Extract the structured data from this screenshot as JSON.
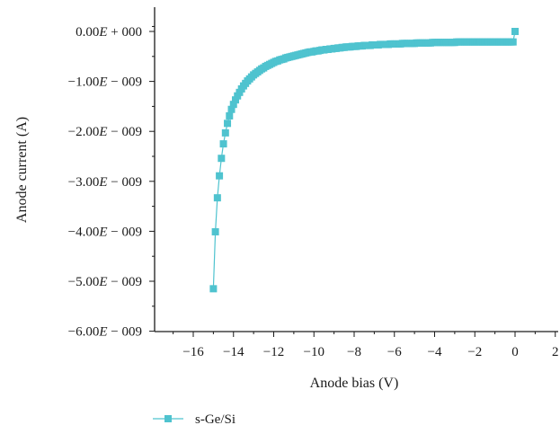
{
  "chart_data": {
    "type": "scatter",
    "title": "",
    "xlabel": "Anode bias (V)",
    "ylabel": "Anode current (A)",
    "xlim": [
      -17,
      2
    ],
    "ylim": [
      -6e-09,
      2e-10
    ],
    "x_ticks": [
      -16,
      -14,
      -12,
      -10,
      -8,
      -6,
      -4,
      -2,
      0,
      2
    ],
    "x_tick_labels": [
      "−16",
      "−14",
      "−12",
      "−10",
      "−8",
      "−6",
      "−4",
      "−2",
      "0",
      "2"
    ],
    "y_ticks": [
      0,
      -1e-09,
      -2e-09,
      -3e-09,
      -4e-09,
      -5e-09,
      -6e-09
    ],
    "y_tick_labels": [
      {
        "mant": "0.00",
        "sep": " + ",
        "exp": "000"
      },
      {
        "mant": "−1.00",
        "sep": " − ",
        "exp": "009"
      },
      {
        "mant": "−2.00",
        "sep": " − ",
        "exp": "009"
      },
      {
        "mant": "−3.00",
        "sep": " − ",
        "exp": "009"
      },
      {
        "mant": "−4.00",
        "sep": " − ",
        "exp": "009"
      },
      {
        "mant": "−5.00",
        "sep": " − ",
        "exp": "009"
      },
      {
        "mant": "−6.00",
        "sep": " − ",
        "exp": "009"
      }
    ],
    "y_exp_symbol": "E",
    "grid": false,
    "legend_position": "bottom-left",
    "series": [
      {
        "name": "s-Ge/Si",
        "color": "#4fc3cf",
        "marker": "square",
        "x": [
          -15.0,
          -14.9,
          -14.8,
          -14.7,
          -14.6,
          -14.5,
          -14.4,
          -14.3,
          -14.2,
          -14.1,
          -14.0,
          -13.9,
          -13.8,
          -13.7,
          -13.6,
          -13.5,
          -13.4,
          -13.3,
          -13.2,
          -13.1,
          -13.0,
          -12.9,
          -12.8,
          -12.7,
          -12.6,
          -12.5,
          -12.4,
          -12.3,
          -12.2,
          -12.1,
          -12.0,
          -11.9,
          -11.8,
          -11.7,
          -11.6,
          -11.5,
          -11.4,
          -11.3,
          -11.2,
          -11.1,
          -11.0,
          -10.9,
          -10.8,
          -10.7,
          -10.6,
          -10.5,
          -10.4,
          -10.3,
          -10.2,
          -10.1,
          -10.0,
          -9.9,
          -9.8,
          -9.7,
          -9.6,
          -9.5,
          -9.4,
          -9.3,
          -9.2,
          -9.1,
          -9.0,
          -8.9,
          -8.8,
          -8.7,
          -8.6,
          -8.5,
          -8.4,
          -8.3,
          -8.2,
          -8.1,
          -8.0,
          -7.9,
          -7.8,
          -7.7,
          -7.6,
          -7.5,
          -7.4,
          -7.3,
          -7.2,
          -7.1,
          -7.0,
          -6.9,
          -6.8,
          -6.7,
          -6.6,
          -6.5,
          -6.4,
          -6.3,
          -6.2,
          -6.1,
          -6.0,
          -5.9,
          -5.8,
          -5.7,
          -5.6,
          -5.5,
          -5.4,
          -5.3,
          -5.2,
          -5.1,
          -5.0,
          -4.9,
          -4.8,
          -4.7,
          -4.6,
          -4.5,
          -4.4,
          -4.3,
          -4.2,
          -4.1,
          -4.0,
          -3.9,
          -3.8,
          -3.7,
          -3.6,
          -3.5,
          -3.4,
          -3.3,
          -3.2,
          -3.1,
          -3.0,
          -2.9,
          -2.8,
          -2.7,
          -2.6,
          -2.5,
          -2.4,
          -2.3,
          -2.2,
          -2.1,
          -2.0,
          -1.9,
          -1.8,
          -1.7,
          -1.6,
          -1.5,
          -1.4,
          -1.3,
          -1.2,
          -1.1,
          -1.0,
          -0.9,
          -0.8,
          -0.7,
          -0.6,
          -0.5,
          -0.4,
          -0.3,
          -0.2,
          -0.1,
          0.0
        ],
        "y": [
          -5.15e-09,
          -4.01e-09,
          -3.33e-09,
          -2.89e-09,
          -2.54e-09,
          -2.25e-09,
          -2.03e-09,
          -1.84e-09,
          -1.69e-09,
          -1.56e-09,
          -1.46e-09,
          -1.37e-09,
          -1.29e-09,
          -1.22e-09,
          -1.15e-09,
          -1.09e-09,
          -1.04e-09,
          -9.9e-10,
          -9.5e-10,
          -9.1e-10,
          -8.7e-10,
          -8.4e-10,
          -8.1e-10,
          -7.8e-10,
          -7.5e-10,
          -7.3e-10,
          -7e-10,
          -6.8e-10,
          -6.6e-10,
          -6.4e-10,
          -6.2e-10,
          -6e-10,
          -5.9e-10,
          -5.7e-10,
          -5.6e-10,
          -5.5e-10,
          -5.3e-10,
          -5.2e-10,
          -5.1e-10,
          -5e-10,
          -4.9e-10,
          -4.8e-10,
          -4.7e-10,
          -4.6e-10,
          -4.5e-10,
          -4.4e-10,
          -4.3e-10,
          -4.2e-10,
          -4.1e-10,
          -4.1e-10,
          -4e-10,
          -3.9e-10,
          -3.9e-10,
          -3.8e-10,
          -3.7e-10,
          -3.7e-10,
          -3.6e-10,
          -3.6e-10,
          -3.5e-10,
          -3.5e-10,
          -3.4e-10,
          -3.4e-10,
          -3.3e-10,
          -3.3e-10,
          -3.2e-10,
          -3.2e-10,
          -3.1e-10,
          -3.1e-10,
          -3.1e-10,
          -3e-10,
          -3e-10,
          -3e-10,
          -2.9e-10,
          -2.9e-10,
          -2.9e-10,
          -2.8e-10,
          -2.8e-10,
          -2.8e-10,
          -2.8e-10,
          -2.7e-10,
          -2.7e-10,
          -2.7e-10,
          -2.7e-10,
          -2.6e-10,
          -2.6e-10,
          -2.6e-10,
          -2.6e-10,
          -2.6e-10,
          -2.5e-10,
          -2.5e-10,
          -2.5e-10,
          -2.5e-10,
          -2.5e-10,
          -2.5e-10,
          -2.4e-10,
          -2.4e-10,
          -2.4e-10,
          -2.4e-10,
          -2.4e-10,
          -2.4e-10,
          -2.4e-10,
          -2.3e-10,
          -2.3e-10,
          -2.3e-10,
          -2.3e-10,
          -2.3e-10,
          -2.3e-10,
          -2.3e-10,
          -2.3e-10,
          -2.2e-10,
          -2.2e-10,
          -2.2e-10,
          -2.2e-10,
          -2.2e-10,
          -2.2e-10,
          -2.2e-10,
          -2.2e-10,
          -2.2e-10,
          -2.2e-10,
          -2.2e-10,
          -2.2e-10,
          -2.1e-10,
          -2.1e-10,
          -2.1e-10,
          -2.1e-10,
          -2.1e-10,
          -2.1e-10,
          -2.1e-10,
          -2.1e-10,
          -2.1e-10,
          -2.1e-10,
          -2.1e-10,
          -2.1e-10,
          -2.1e-10,
          -2.1e-10,
          -2.1e-10,
          -2.1e-10,
          -2.1e-10,
          -2.1e-10,
          -2.1e-10,
          -2.1e-10,
          -2.1e-10,
          -2.1e-10,
          -2.1e-10,
          -2.1e-10,
          -2.1e-10,
          -2.1e-10,
          -2.1e-10,
          -2.1e-10,
          -2.1e-10,
          0.0
        ]
      }
    ]
  }
}
